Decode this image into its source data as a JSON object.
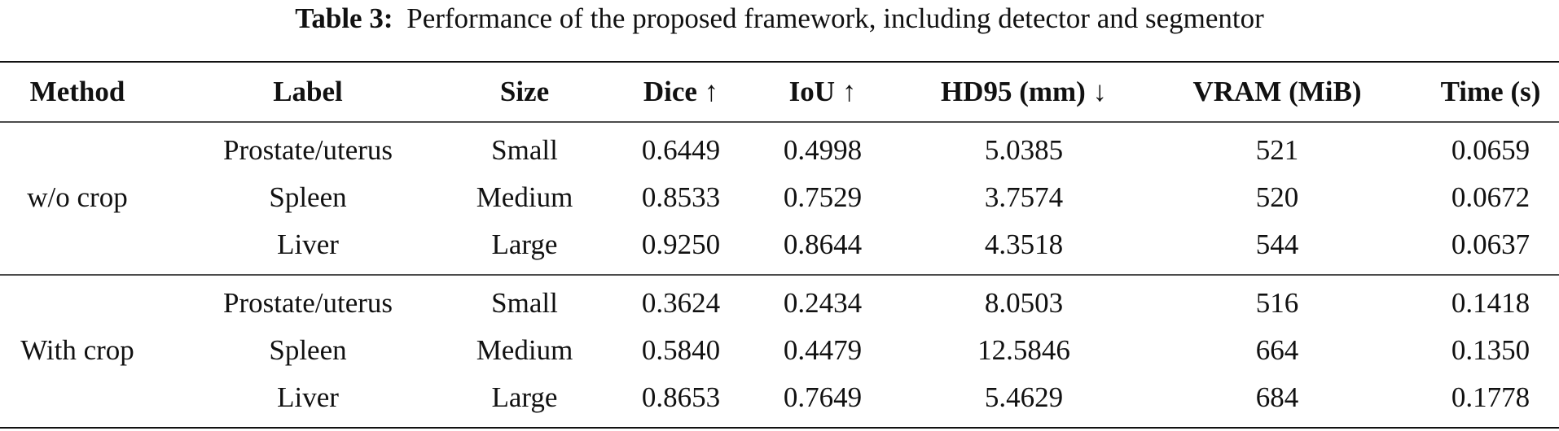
{
  "caption": {
    "label": "Table 3:",
    "text": "Performance of the proposed framework, including detector and segmentor"
  },
  "table": {
    "header": [
      "Method",
      "Label",
      "Size",
      "Dice ↑",
      "IoU ↑",
      "HD95 (mm) ↓",
      "VRAM (MiB)",
      "Time (s)"
    ],
    "groups": [
      {
        "method": "w/o crop",
        "rows": [
          [
            "Prostate/uterus",
            "Small",
            "0.6449",
            "0.4998",
            "5.0385",
            "521",
            "0.0659"
          ],
          [
            "Spleen",
            "Medium",
            "0.8533",
            "0.7529",
            "3.7574",
            "520",
            "0.0672"
          ],
          [
            "Liver",
            "Large",
            "0.9250",
            "0.8644",
            "4.3518",
            "544",
            "0.0637"
          ]
        ]
      },
      {
        "method": "With crop",
        "rows": [
          [
            "Prostate/uterus",
            "Small",
            "0.3624",
            "0.2434",
            "8.0503",
            "516",
            "0.1418"
          ],
          [
            "Spleen",
            "Medium",
            "0.5840",
            "0.4479",
            "12.5846",
            "664",
            "0.1350"
          ],
          [
            "Liver",
            "Large",
            "0.8653",
            "0.7649",
            "5.4629",
            "684",
            "0.1778"
          ]
        ]
      }
    ]
  }
}
